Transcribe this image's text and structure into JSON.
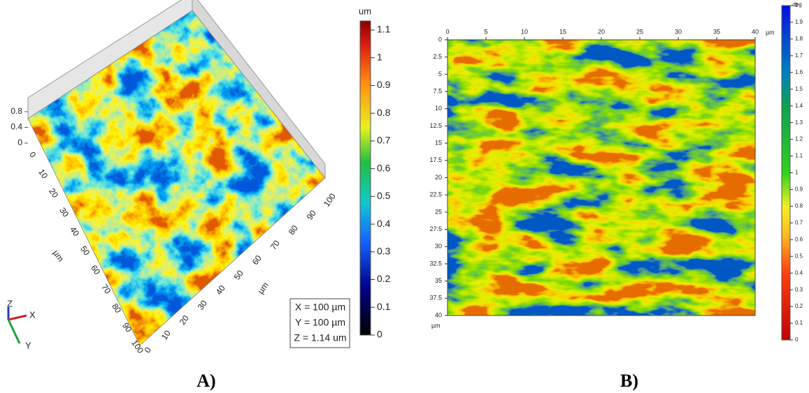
{
  "panel_a": {
    "label": "A)",
    "colorbar": {
      "unit": "um",
      "ticks": [
        0,
        0.1,
        0.2,
        0.3,
        0.4,
        0.5,
        0.6,
        0.7,
        0.8,
        0.9,
        1,
        1.1
      ]
    },
    "z_ticks": [
      0,
      0.4,
      0.8
    ],
    "y_ticks": [
      0,
      10,
      20,
      30,
      40,
      50,
      60,
      70,
      80,
      90,
      100
    ],
    "x_ticks": [
      0,
      10,
      20,
      30,
      40,
      50,
      60,
      70,
      80,
      90,
      100
    ],
    "y_unit": "µm",
    "x_unit": "µm",
    "info": [
      "X = 100 µm",
      "Y = 100 µm",
      "Z = 1.14 um"
    ],
    "triad": [
      "X",
      "Y",
      "Z"
    ]
  },
  "panel_b": {
    "label": "B)",
    "colorbar": {
      "unit": "deg",
      "ticks": [
        0,
        0.1,
        0.2,
        0.3,
        0.4,
        0.5,
        0.6,
        0.7,
        0.8,
        0.9,
        1,
        1.1,
        1.2,
        1.3,
        1.4,
        1.5,
        1.6,
        1.7,
        1.8,
        1.9,
        2
      ]
    },
    "x_ticks": [
      0,
      5,
      10,
      15,
      20,
      25,
      30,
      35,
      40
    ],
    "y_ticks": [
      0,
      2.5,
      5,
      7.5,
      10,
      12.5,
      15,
      17.5,
      20,
      22.5,
      25,
      27.5,
      30,
      32.5,
      35,
      37.5,
      40
    ],
    "x_unit": "µm",
    "y_unit": "µm"
  }
}
